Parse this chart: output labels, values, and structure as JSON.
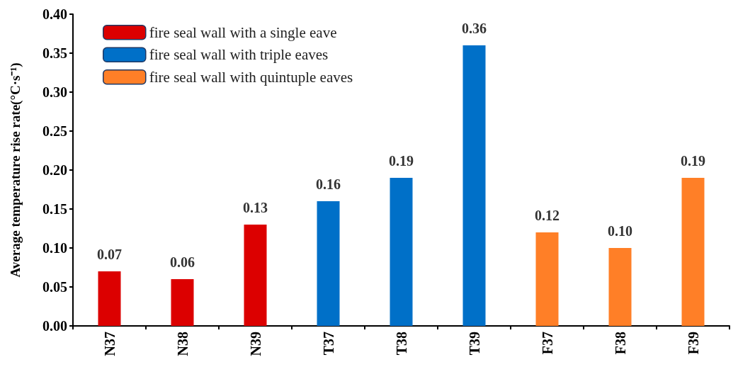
{
  "chart_data": {
    "type": "bar",
    "ylabel": "Average temperature rise rate(°C·s⁻¹)",
    "categories": [
      "N37",
      "N38",
      "N39",
      "T37",
      "T38",
      "T39",
      "F37",
      "F38",
      "F39"
    ],
    "series": [
      {
        "name": "fire seal wall with a single eave",
        "color": "#dc0000",
        "values": [
          0.07,
          0.06,
          0.13,
          null,
          null,
          null,
          null,
          null,
          null
        ],
        "value_labels": [
          "0.07",
          "0.06",
          "0.13",
          null,
          null,
          null,
          null,
          null,
          null
        ]
      },
      {
        "name": "fire seal wall with triple eaves",
        "color": "#0070c8",
        "values": [
          null,
          null,
          null,
          0.16,
          0.19,
          0.36,
          null,
          null,
          null
        ],
        "value_labels": [
          null,
          null,
          null,
          "0.16",
          "0.19",
          "0.36",
          null,
          null,
          null
        ]
      },
      {
        "name": "fire seal wall with quintuple eaves",
        "color": "#ff7f27",
        "values": [
          null,
          null,
          null,
          null,
          null,
          null,
          0.12,
          0.1,
          0.19
        ],
        "value_labels": [
          null,
          null,
          null,
          null,
          null,
          null,
          "0.12",
          "0.10",
          "0.19"
        ]
      }
    ],
    "ylim": [
      0,
      0.4
    ],
    "yticks": [
      {
        "value": 0,
        "label": "0.00"
      },
      {
        "value": 0.05,
        "label": "0.05"
      },
      {
        "value": 0.1,
        "label": "0.10"
      },
      {
        "value": 0.15,
        "label": "0.15"
      },
      {
        "value": 0.2,
        "label": "0.20"
      },
      {
        "value": 0.25,
        "label": "0.25"
      },
      {
        "value": 0.3,
        "label": "0.30"
      },
      {
        "value": 0.35,
        "label": "0.35"
      },
      {
        "value": 0.4,
        "label": "0.40"
      }
    ],
    "legend": "top left",
    "grid": false
  }
}
